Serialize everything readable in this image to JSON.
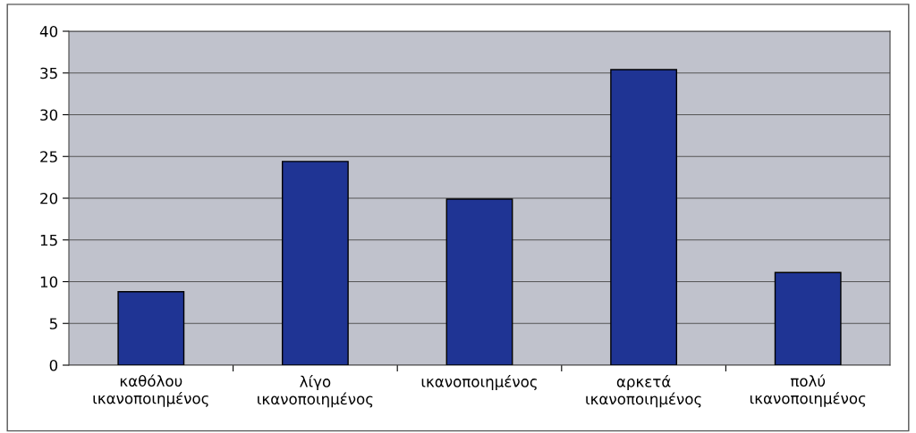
{
  "chart_data": {
    "type": "bar",
    "categories": [
      "καθόλου\nικανοποιημένος",
      "λίγο\nικανοποιημένος",
      "ικανοποιημένος",
      "αρκετά\nικανοποιημένος",
      "πολύ\nικανοποιημένος"
    ],
    "values": [
      8.8,
      24.4,
      19.9,
      35.4,
      11.1
    ],
    "color": "#1f3494",
    "ylim": [
      0,
      40
    ],
    "yticks": [
      0,
      5,
      10,
      15,
      20,
      25,
      30,
      35,
      40
    ],
    "grid": "y",
    "legend": false
  }
}
